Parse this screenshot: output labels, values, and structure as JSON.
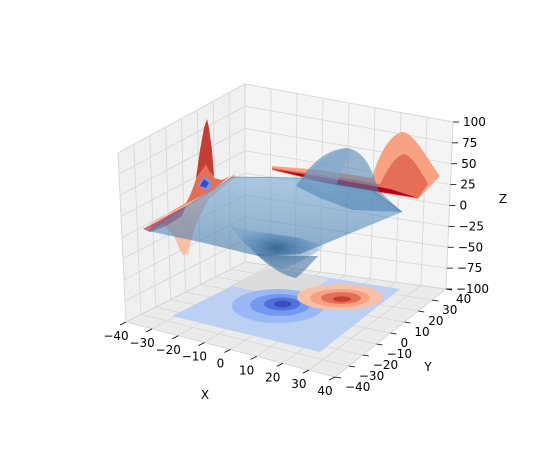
{
  "chart_data": {
    "type": "contour3d",
    "title": "",
    "surface": {
      "function": "axes3d test data (sum of two gaussian bumps)",
      "peak_z": 80,
      "trough_z": -65,
      "peak_location": [
        10,
        10
      ],
      "trough_location": [
        -5,
        -5
      ],
      "color": "#4a88c0"
    },
    "projections": [
      {
        "plane": "z",
        "offset": -100,
        "cmap": "coolwarm"
      },
      {
        "plane": "x",
        "offset": -40,
        "cmap": "coolwarm"
      },
      {
        "plane": "y",
        "offset": 40,
        "cmap": "coolwarm"
      }
    ],
    "xlabel": "X",
    "ylabel": "Y",
    "zlabel": "Z",
    "xlim": [
      -40,
      40
    ],
    "ylim": [
      -40,
      40
    ],
    "zlim": [
      -100,
      100
    ],
    "x_ticks": [
      "−40",
      "−30",
      "−20",
      "−10",
      "0",
      "10",
      "20",
      "30",
      "40"
    ],
    "y_ticks": [
      "−40",
      "−30",
      "−20",
      "−10",
      "0",
      "10",
      "20",
      "30",
      "40"
    ],
    "z_ticks": [
      "−100",
      "−75",
      "−50",
      "−25",
      "0",
      "25",
      "50",
      "75",
      "100"
    ],
    "grid": true
  },
  "colors": {
    "pane": "#f2f2f2",
    "pane_side": "#e8e8e8",
    "grid": "#d6d6d6",
    "surface": "#4a88c0",
    "warm_dark": "#b40426",
    "warm_mid": "#e46e56",
    "warm_light": "#f6a283",
    "cool_dark": "#3b4cc0",
    "cool_mid": "#6f92f3",
    "cool_light": "#bbcff6",
    "neutral": "#dddcdc"
  }
}
